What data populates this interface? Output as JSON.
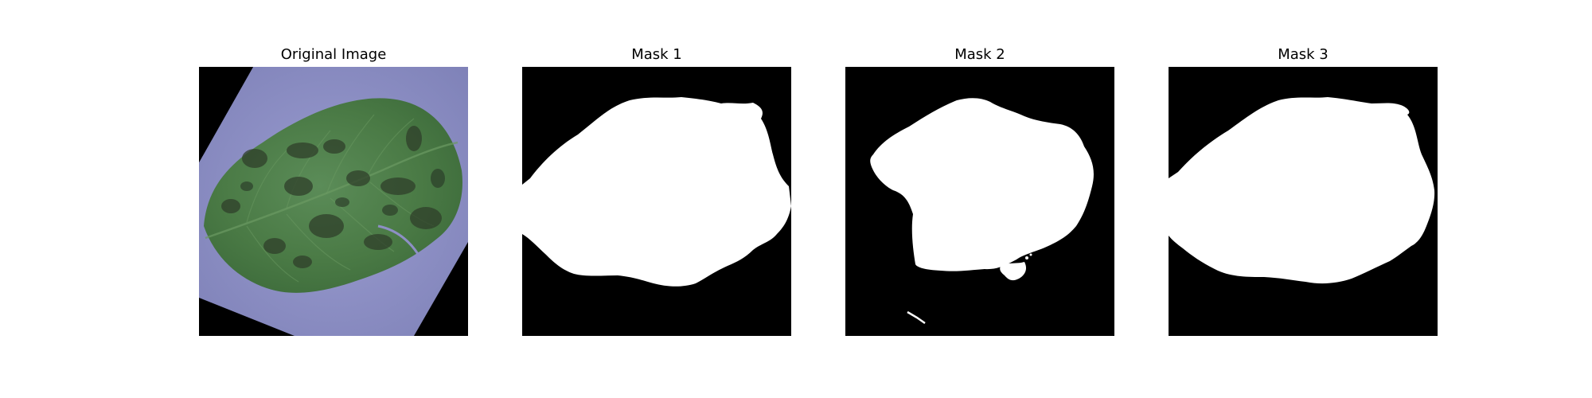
{
  "figure": {
    "panels": [
      {
        "title": "Original Image",
        "content": "photo of a green leaf with dark lesion spots on a lavender background, rotated, black corners"
      },
      {
        "title": "Mask 1",
        "content": "binary segmentation mask, white leaf region on black"
      },
      {
        "title": "Mask 2",
        "content": "binary segmentation mask, white irregular region on black"
      },
      {
        "title": "Mask 3",
        "content": "binary segmentation mask, white leaf region on black"
      }
    ]
  },
  "colors": {
    "background": "#ffffff",
    "mask_foreground": "#ffffff",
    "mask_background": "#000000",
    "leaf_green": "#4a7a45",
    "paper_lavender": "#8d8fc4"
  }
}
